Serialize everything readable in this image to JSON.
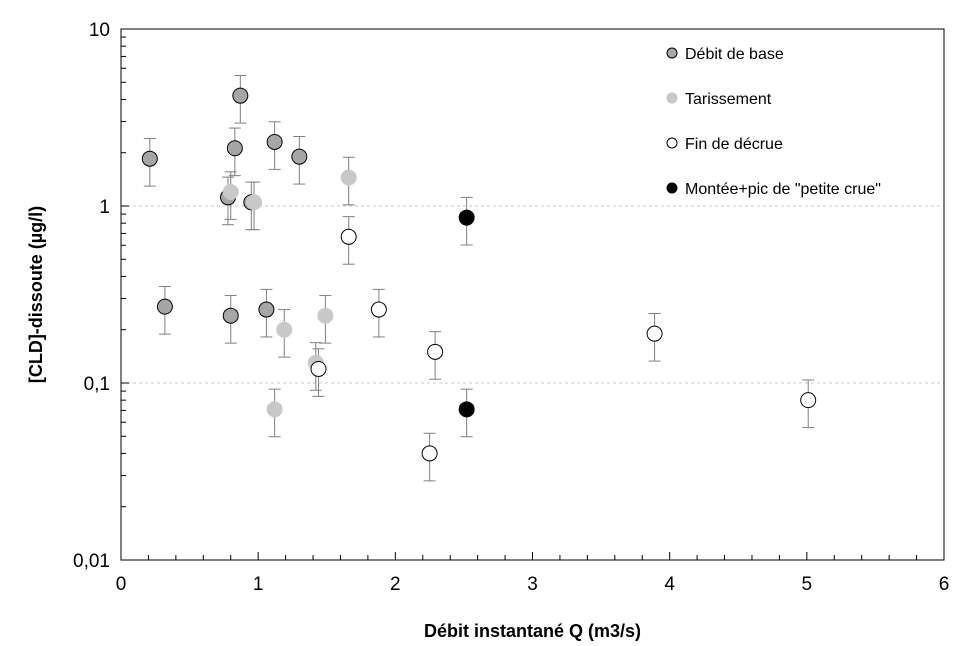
{
  "chart_data": {
    "type": "scatter",
    "xlabel": "Débit instantané Q (m3/s)",
    "ylabel": "[CLD]-dissoute (µg/l)",
    "xlim": [
      0,
      6
    ],
    "ylim": [
      0.01,
      10
    ],
    "y_scale": "log",
    "x_ticks": [
      "0",
      "1",
      "2",
      "3",
      "4",
      "5",
      "6"
    ],
    "y_ticks": [
      "0,01",
      "0,1",
      "1",
      "10"
    ],
    "grid": "horizontal dashed at 0,1 and 1",
    "legend_position": "top-right",
    "error_bars": "±30%",
    "series": [
      {
        "name": "Débit de base",
        "color": "#a6a6a6",
        "edge": "#000000",
        "points": [
          {
            "x": 0.21,
            "y": 1.85
          },
          {
            "x": 0.32,
            "y": 0.27
          },
          {
            "x": 0.78,
            "y": 1.12
          },
          {
            "x": 0.8,
            "y": 0.24
          },
          {
            "x": 0.83,
            "y": 2.12
          },
          {
            "x": 0.87,
            "y": 4.2
          },
          {
            "x": 0.95,
            "y": 1.05
          },
          {
            "x": 1.06,
            "y": 0.26
          },
          {
            "x": 1.12,
            "y": 2.3
          },
          {
            "x": 1.3,
            "y": 1.9
          }
        ]
      },
      {
        "name": "Tarissement",
        "color": "#c8c8c8",
        "edge": "#c8c8c8",
        "points": [
          {
            "x": 0.8,
            "y": 1.2
          },
          {
            "x": 0.97,
            "y": 1.05
          },
          {
            "x": 1.12,
            "y": 0.071
          },
          {
            "x": 1.19,
            "y": 0.2
          },
          {
            "x": 1.42,
            "y": 0.13
          },
          {
            "x": 1.49,
            "y": 0.24
          },
          {
            "x": 1.66,
            "y": 1.45
          }
        ]
      },
      {
        "name": "Fin de décrue",
        "color": "#ffffff",
        "edge": "#000000",
        "points": [
          {
            "x": 1.44,
            "y": 0.12
          },
          {
            "x": 1.66,
            "y": 0.67
          },
          {
            "x": 1.88,
            "y": 0.26
          },
          {
            "x": 2.25,
            "y": 0.04
          },
          {
            "x": 2.29,
            "y": 0.15
          },
          {
            "x": 3.89,
            "y": 0.19
          },
          {
            "x": 5.01,
            "y": 0.08
          }
        ]
      },
      {
        "name": "Montée+pic de \"petite crue\"",
        "color": "#000000",
        "edge": "#000000",
        "points": [
          {
            "x": 2.52,
            "y": 0.86
          },
          {
            "x": 2.52,
            "y": 0.071
          }
        ]
      }
    ]
  }
}
